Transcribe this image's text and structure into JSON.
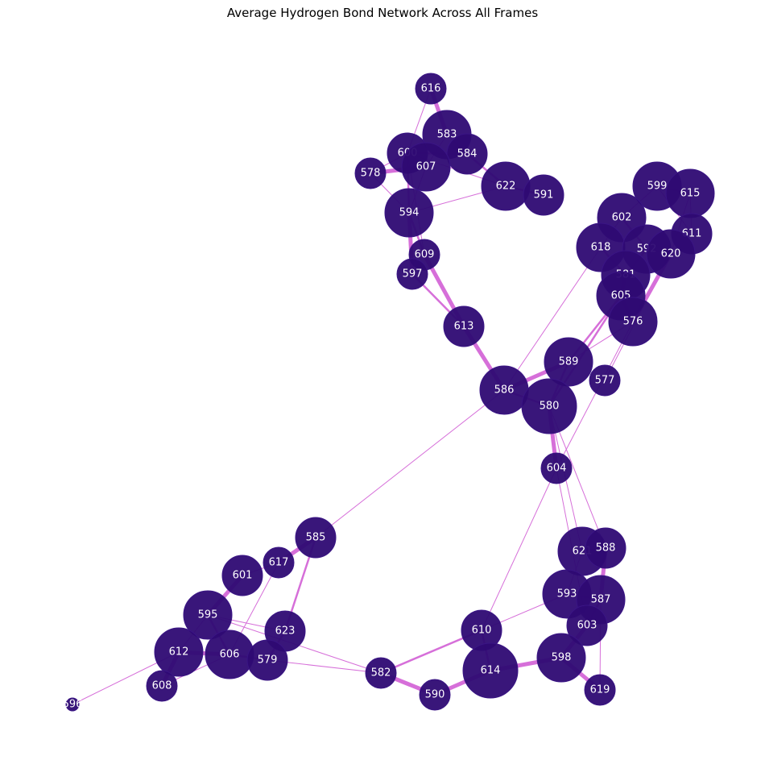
{
  "title": "Average Hydrogen Bond Network Across All Frames",
  "colors": {
    "node": "#2e0a73",
    "node_stroke": "#3a1585",
    "edge": "#d66fd9",
    "label": "#ffffff"
  },
  "chart_data": {
    "type": "network",
    "nodes": [
      {
        "id": "616",
        "size": "small"
      },
      {
        "id": "583",
        "size": "large"
      },
      {
        "id": "600",
        "size": "medium"
      },
      {
        "id": "584",
        "size": "medium"
      },
      {
        "id": "607",
        "size": "large"
      },
      {
        "id": "578",
        "size": "small"
      },
      {
        "id": "622",
        "size": "large"
      },
      {
        "id": "591",
        "size": "medium"
      },
      {
        "id": "594",
        "size": "large"
      },
      {
        "id": "609",
        "size": "small"
      },
      {
        "id": "597",
        "size": "small"
      },
      {
        "id": "613",
        "size": "medium"
      },
      {
        "id": "599",
        "size": "large"
      },
      {
        "id": "615",
        "size": "large"
      },
      {
        "id": "602",
        "size": "large"
      },
      {
        "id": "611",
        "size": "medium"
      },
      {
        "id": "618",
        "size": "large"
      },
      {
        "id": "592",
        "size": "large"
      },
      {
        "id": "620",
        "size": "large"
      },
      {
        "id": "581",
        "size": "large"
      },
      {
        "id": "605",
        "size": "large"
      },
      {
        "id": "576",
        "size": "large"
      },
      {
        "id": "589",
        "size": "large"
      },
      {
        "id": "577",
        "size": "small"
      },
      {
        "id": "586",
        "size": "large"
      },
      {
        "id": "580",
        "size": "xlarge"
      },
      {
        "id": "604",
        "size": "small"
      },
      {
        "id": "585",
        "size": "medium"
      },
      {
        "id": "617",
        "size": "small"
      },
      {
        "id": "601",
        "size": "medium"
      },
      {
        "id": "595",
        "size": "large"
      },
      {
        "id": "623",
        "size": "medium"
      },
      {
        "id": "612",
        "size": "large"
      },
      {
        "id": "606",
        "size": "large"
      },
      {
        "id": "579",
        "size": "medium"
      },
      {
        "id": "608",
        "size": "small"
      },
      {
        "id": "596",
        "size": "tiny"
      },
      {
        "id": "621",
        "size": "large"
      },
      {
        "id": "588",
        "size": "medium"
      },
      {
        "id": "593",
        "size": "large"
      },
      {
        "id": "587",
        "size": "large"
      },
      {
        "id": "603",
        "size": "medium"
      },
      {
        "id": "610",
        "size": "medium"
      },
      {
        "id": "598",
        "size": "large"
      },
      {
        "id": "614",
        "size": "xlarge"
      },
      {
        "id": "582",
        "size": "small"
      },
      {
        "id": "590",
        "size": "small"
      },
      {
        "id": "619",
        "size": "small"
      }
    ],
    "edges": [
      {
        "source": "616",
        "target": "583",
        "weight": "heavy"
      },
      {
        "source": "616",
        "target": "600",
        "weight": "light"
      },
      {
        "source": "583",
        "target": "607",
        "weight": "light"
      },
      {
        "source": "583",
        "target": "584",
        "weight": "light"
      },
      {
        "source": "600",
        "target": "584",
        "weight": "medium"
      },
      {
        "source": "600",
        "target": "607",
        "weight": "light"
      },
      {
        "source": "600",
        "target": "578",
        "weight": "light"
      },
      {
        "source": "600",
        "target": "594",
        "weight": "medium"
      },
      {
        "source": "600",
        "target": "609",
        "weight": "light"
      },
      {
        "source": "607",
        "target": "578",
        "weight": "heavy"
      },
      {
        "source": "607",
        "target": "594",
        "weight": "light"
      },
      {
        "source": "578",
        "target": "594",
        "weight": "light"
      },
      {
        "source": "584",
        "target": "622",
        "weight": "medium"
      },
      {
        "source": "600",
        "target": "622",
        "weight": "light"
      },
      {
        "source": "622",
        "target": "591",
        "weight": "medium"
      },
      {
        "source": "594",
        "target": "622",
        "weight": "light"
      },
      {
        "source": "594",
        "target": "609",
        "weight": "medium"
      },
      {
        "source": "594",
        "target": "597",
        "weight": "heavy"
      },
      {
        "source": "609",
        "target": "613",
        "weight": "heavy"
      },
      {
        "source": "597",
        "target": "613",
        "weight": "medium"
      },
      {
        "source": "613",
        "target": "586",
        "weight": "heavy"
      },
      {
        "source": "586",
        "target": "580",
        "weight": "medium"
      },
      {
        "source": "586",
        "target": "589",
        "weight": "heavy"
      },
      {
        "source": "586",
        "target": "618",
        "weight": "light"
      },
      {
        "source": "586",
        "target": "585",
        "weight": "light"
      },
      {
        "source": "580",
        "target": "589",
        "weight": "medium"
      },
      {
        "source": "580",
        "target": "604",
        "weight": "heavy"
      },
      {
        "source": "580",
        "target": "621",
        "weight": "light"
      },
      {
        "source": "580",
        "target": "588",
        "weight": "light"
      },
      {
        "source": "580",
        "target": "605",
        "weight": "medium"
      },
      {
        "source": "589",
        "target": "605",
        "weight": "medium"
      },
      {
        "source": "589",
        "target": "576",
        "weight": "light"
      },
      {
        "source": "576",
        "target": "620",
        "weight": "heavy"
      },
      {
        "source": "576",
        "target": "604",
        "weight": "light"
      },
      {
        "source": "581",
        "target": "605",
        "weight": "heavy"
      },
      {
        "source": "581",
        "target": "592",
        "weight": "medium"
      },
      {
        "source": "602",
        "target": "592",
        "weight": "medium"
      },
      {
        "source": "602",
        "target": "618",
        "weight": "light"
      },
      {
        "source": "602",
        "target": "599",
        "weight": "light"
      },
      {
        "source": "599",
        "target": "615",
        "weight": "medium"
      },
      {
        "source": "599",
        "target": "611",
        "weight": "light"
      },
      {
        "source": "615",
        "target": "611",
        "weight": "light"
      },
      {
        "source": "615",
        "target": "620",
        "weight": "light"
      },
      {
        "source": "618",
        "target": "581",
        "weight": "medium"
      },
      {
        "source": "592",
        "target": "620",
        "weight": "medium"
      },
      {
        "source": "605",
        "target": "576",
        "weight": "heavy"
      },
      {
        "source": "577",
        "target": "620",
        "weight": "light"
      },
      {
        "source": "604",
        "target": "610",
        "weight": "light"
      },
      {
        "source": "604",
        "target": "603",
        "weight": "light"
      },
      {
        "source": "621",
        "target": "588",
        "weight": "medium"
      },
      {
        "source": "621",
        "target": "593",
        "weight": "light"
      },
      {
        "source": "588",
        "target": "587",
        "weight": "heavy"
      },
      {
        "source": "593",
        "target": "587",
        "weight": "medium"
      },
      {
        "source": "593",
        "target": "610",
        "weight": "light"
      },
      {
        "source": "587",
        "target": "603",
        "weight": "medium"
      },
      {
        "source": "587",
        "target": "619",
        "weight": "light"
      },
      {
        "source": "603",
        "target": "598",
        "weight": "heavy"
      },
      {
        "source": "598",
        "target": "614",
        "weight": "heavy"
      },
      {
        "source": "598",
        "target": "619",
        "weight": "heavy"
      },
      {
        "source": "614",
        "target": "590",
        "weight": "heavy"
      },
      {
        "source": "614",
        "target": "610",
        "weight": "medium"
      },
      {
        "source": "610",
        "target": "582",
        "weight": "medium"
      },
      {
        "source": "582",
        "target": "590",
        "weight": "heavy"
      },
      {
        "source": "582",
        "target": "579",
        "weight": "light"
      },
      {
        "source": "582",
        "target": "595",
        "weight": "light"
      },
      {
        "source": "585",
        "target": "617",
        "weight": "heavy"
      },
      {
        "source": "585",
        "target": "623",
        "weight": "medium"
      },
      {
        "source": "617",
        "target": "601",
        "weight": "light"
      },
      {
        "source": "617",
        "target": "606",
        "weight": "light"
      },
      {
        "source": "601",
        "target": "595",
        "weight": "heavy"
      },
      {
        "source": "595",
        "target": "606",
        "weight": "medium"
      },
      {
        "source": "595",
        "target": "612",
        "weight": "light"
      },
      {
        "source": "595",
        "target": "623",
        "weight": "light"
      },
      {
        "source": "612",
        "target": "606",
        "weight": "heavy"
      },
      {
        "source": "612",
        "target": "608",
        "weight": "heavy"
      },
      {
        "source": "612",
        "target": "596",
        "weight": "light"
      },
      {
        "source": "606",
        "target": "579",
        "weight": "medium"
      },
      {
        "source": "606",
        "target": "608",
        "weight": "light"
      },
      {
        "source": "623",
        "target": "579",
        "weight": "medium"
      }
    ]
  }
}
